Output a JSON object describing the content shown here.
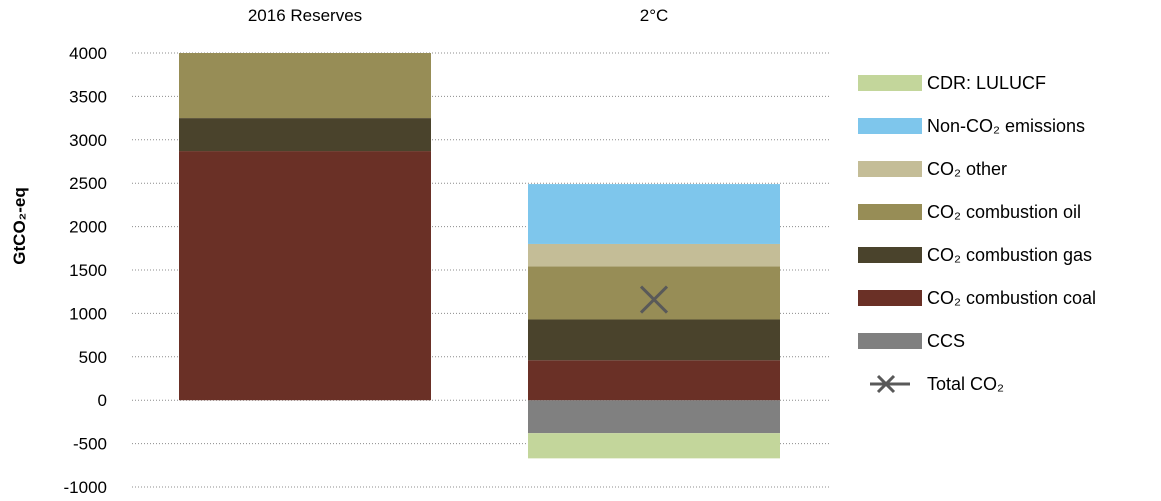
{
  "chart_data": {
    "type": "bar",
    "stacked": true,
    "categories": [
      "2016 Reserves",
      "2°C"
    ],
    "ylabel": "GtCO₂-eq",
    "ylim": [
      -1000,
      4000
    ],
    "yticks": [
      4000,
      3500,
      3000,
      2500,
      2000,
      1500,
      1000,
      500,
      0,
      -500,
      -1000
    ],
    "grid": true,
    "legend_position": "right",
    "series": [
      {
        "name": "CCS",
        "color": "#808080",
        "values": [
          0,
          -380
        ]
      },
      {
        "name": "CDR: LULUCF",
        "color": "#c3d69b",
        "values": [
          0,
          -290
        ]
      },
      {
        "name": "CO₂ combustion coal",
        "color": "#6a3026",
        "values": [
          2870,
          460
        ]
      },
      {
        "name": "CO₂ combustion gas",
        "color": "#4a432c",
        "values": [
          380,
          470
        ]
      },
      {
        "name": "CO₂ combustion oil",
        "color": "#978d56",
        "values": [
          750,
          610
        ]
      },
      {
        "name": "CO₂ other",
        "color": "#c4bd97",
        "values": [
          0,
          260
        ]
      },
      {
        "name": "Non-CO₂ emissions",
        "color": "#7ec6ec",
        "values": [
          0,
          690
        ]
      }
    ],
    "legend_order": [
      "CDR: LULUCF",
      "Non-CO₂ emissions",
      "CO₂ other",
      "CO₂ combustion oil",
      "CO₂ combustion gas",
      "CO₂ combustion coal",
      "CCS"
    ],
    "markers": [
      {
        "name": "Total CO₂",
        "color": "#595959",
        "symbol": "x",
        "category": "2°C",
        "value": 1160
      }
    ]
  }
}
